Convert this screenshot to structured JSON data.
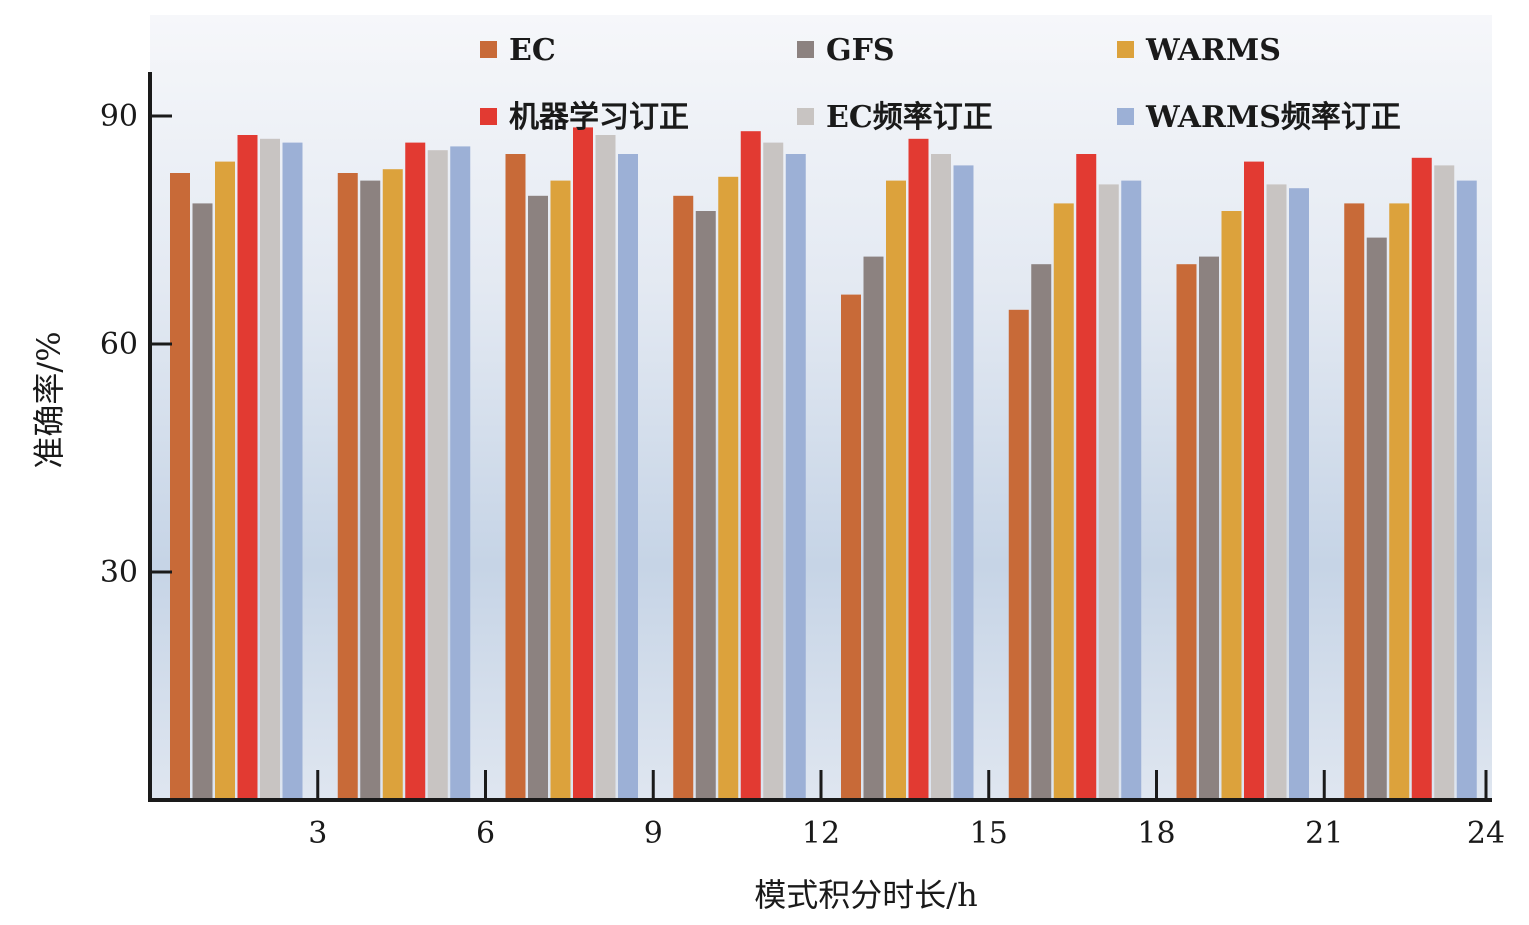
{
  "chart_data": {
    "type": "bar",
    "xlabel": "模式积分时长/h",
    "ylabel": "准确率/%",
    "categories": [
      "3",
      "6",
      "9",
      "12",
      "15",
      "18",
      "21",
      "24"
    ],
    "yticks": [
      "30",
      "60",
      "90"
    ],
    "ylim": [
      0,
      100
    ],
    "grid": false,
    "legend_position": "top",
    "series": [
      {
        "name": "EC",
        "color": "#c86a38",
        "values": [
          82.5,
          82.5,
          85,
          79.5,
          66.5,
          64.5,
          70.5,
          78.5
        ]
      },
      {
        "name": "GFS",
        "color": "#8c8280",
        "values": [
          78.5,
          81.5,
          79.5,
          77.5,
          71.5,
          70.5,
          71.5,
          74
        ]
      },
      {
        "name": "WARMS",
        "color": "#dca23c",
        "values": [
          84,
          83,
          81.5,
          82,
          81.5,
          78.5,
          77.5,
          78.5
        ]
      },
      {
        "name": "机器学习订正",
        "color": "#e23a32",
        "values": [
          87.5,
          86.5,
          88.5,
          88,
          87,
          85,
          84,
          84.5
        ]
      },
      {
        "name": "EC频率订正",
        "color": "#c8c4c2",
        "values": [
          87,
          85.5,
          87.5,
          86.5,
          85,
          81,
          81,
          83.5
        ]
      },
      {
        "name": "WARMS频率订正",
        "color": "#9cb0d6",
        "values": [
          86.5,
          86,
          85,
          85,
          83.5,
          81.5,
          80.5,
          81.5
        ]
      }
    ]
  }
}
